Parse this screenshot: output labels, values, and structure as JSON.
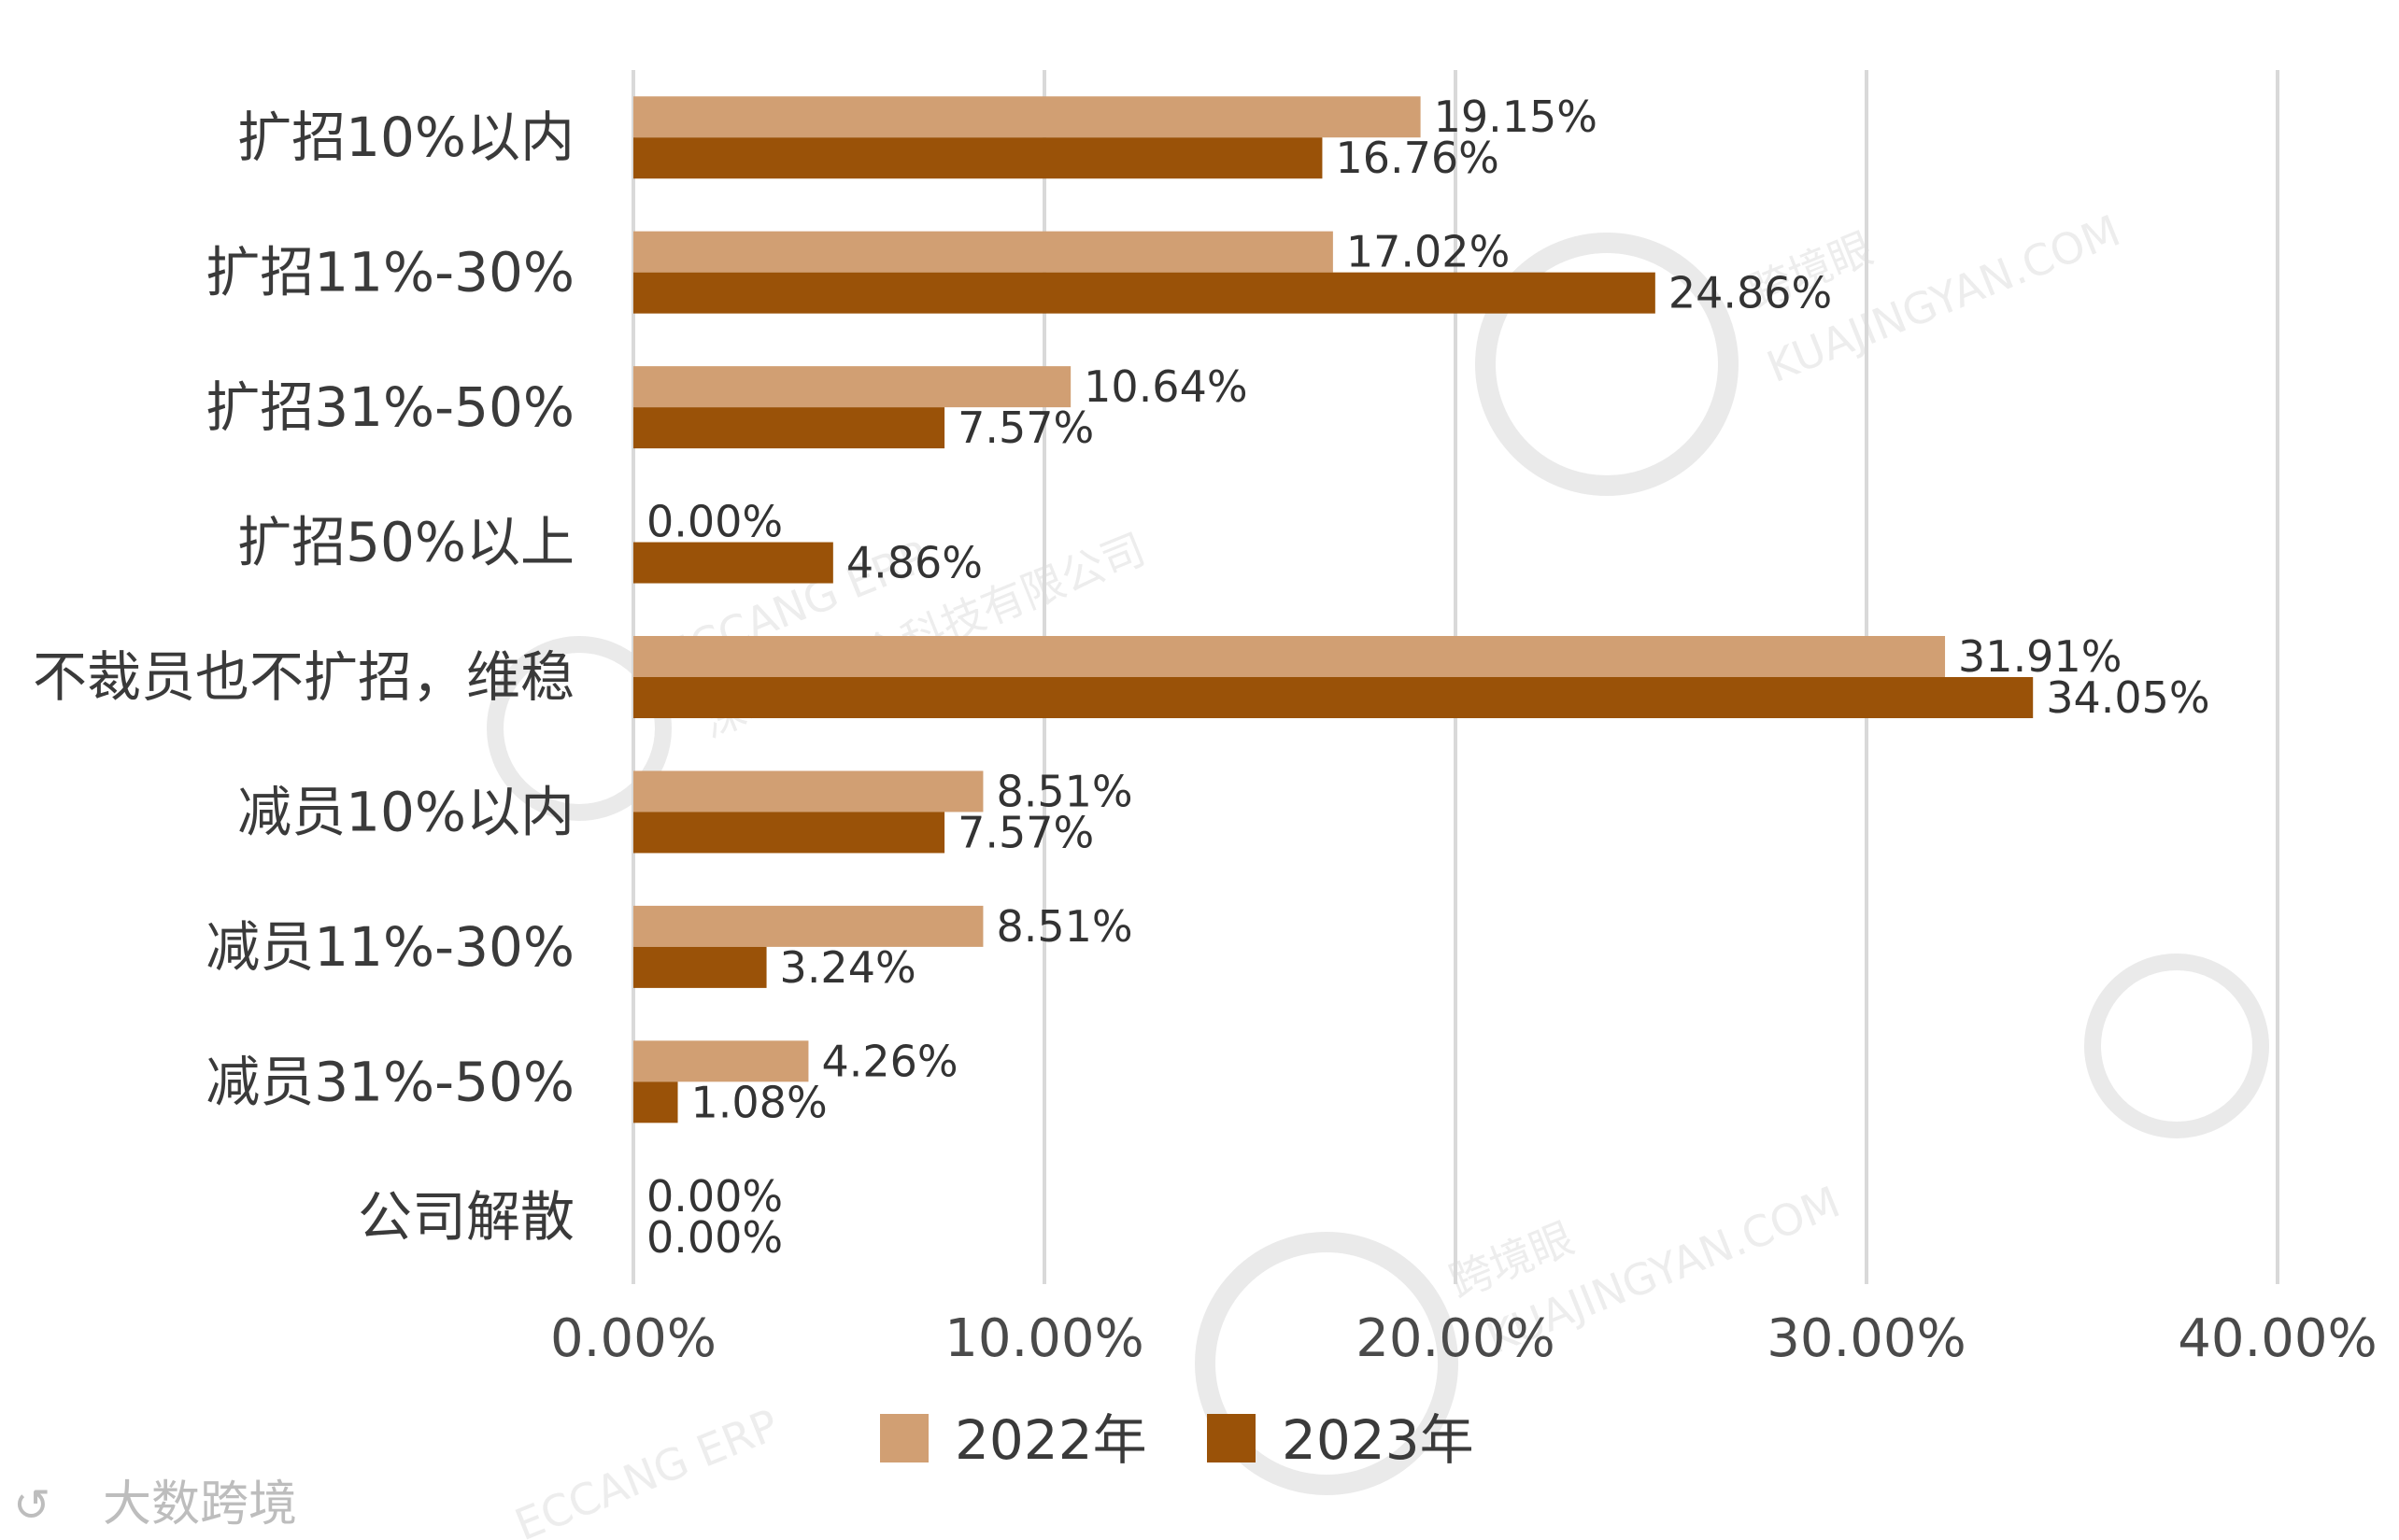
{
  "chart_data": {
    "type": "bar",
    "orientation": "horizontal",
    "categories": [
      "扩招10%以内",
      "扩招11%-30%",
      "扩招31%-50%",
      "扩招50%以上",
      "不裁员也不扩招，维稳",
      "减员10%以内",
      "减员11%-30%",
      "减员31%-50%",
      "公司解散"
    ],
    "series": [
      {
        "name": "2022年",
        "color": "#D19F73",
        "values": [
          19.15,
          17.02,
          10.64,
          0.0,
          31.91,
          8.51,
          8.51,
          4.26,
          0.0
        ],
        "labels": [
          "19.15%",
          "17.02%",
          "10.64%",
          "0.00%",
          "31.91%",
          "8.51%",
          "8.51%",
          "4.26%",
          "0.00%"
        ]
      },
      {
        "name": "2023年",
        "color": "#9A5208",
        "values": [
          16.76,
          24.86,
          7.57,
          4.86,
          34.05,
          7.57,
          3.24,
          1.08,
          0.0
        ],
        "labels": [
          "16.76%",
          "24.86%",
          "7.57%",
          "4.86%",
          "34.05%",
          "7.57%",
          "3.24%",
          "1.08%",
          "0.00%"
        ]
      }
    ],
    "xlim": [
      0,
      40
    ],
    "xticks": [
      0,
      10,
      20,
      30,
      40
    ],
    "xtick_labels": [
      "0.00%",
      "10.00%",
      "20.00%",
      "30.00%",
      "40.00%"
    ],
    "grid": true,
    "legend_position": "bottom"
  },
  "watermarks": {
    "brand_name": "跨境眼",
    "brand_url": "KUAJINGYAN.COM",
    "erp_name": "ECCANG ERP",
    "company": "深圳市易仓科技有限公司",
    "source_badge": "大数跨境"
  }
}
